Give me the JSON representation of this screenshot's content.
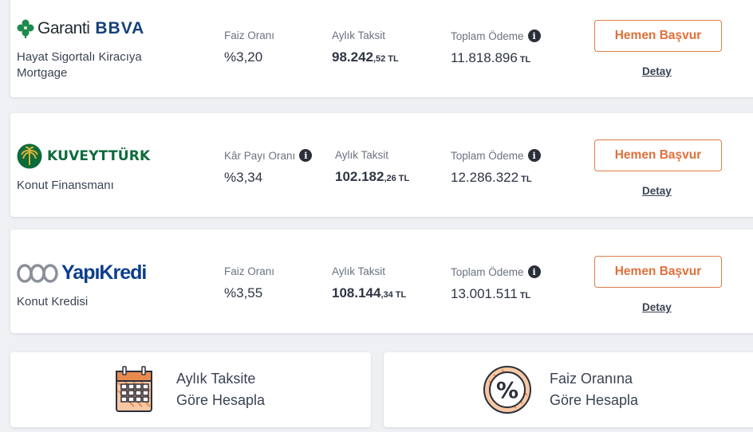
{
  "offers": [
    {
      "bank": "Garanti BBVA",
      "bank_logo_text": {
        "part1": "Garanti",
        "part2": "BBVA"
      },
      "product": "Hayat Sigortalı Kiracıya Mortgage",
      "rate_label": "Faiz Oranı",
      "rate_value": "%3,20",
      "installment_label": "Aylık Taksit",
      "installment_int": "98.242",
      "installment_dec": ",52",
      "installment_unit": "TL",
      "total_label": "Toplam Ödeme",
      "total_value": "11.818.896",
      "total_unit": "TL",
      "apply_label": "Hemen Başvur",
      "detail_label": "Detay"
    },
    {
      "bank": "Kuveyt Türk",
      "bank_logo_text": {
        "part1": "KUVEYTTÜRK"
      },
      "product": "Konut Finansmanı",
      "rate_label": "Kâr Payı Oranı",
      "rate_value": "%3,34",
      "installment_label": "Aylık Taksit",
      "installment_int": "102.182",
      "installment_dec": ",26",
      "installment_unit": "TL",
      "total_label": "Toplam Ödeme",
      "total_value": "12.286.322",
      "total_unit": "TL",
      "apply_label": "Hemen Başvur",
      "detail_label": "Detay"
    },
    {
      "bank": "Yapı Kredi",
      "bank_logo_text": {
        "part1": "YapıKredi"
      },
      "product": "Konut Kredisi",
      "rate_label": "Faiz Oranı",
      "rate_value": "%3,55",
      "installment_label": "Aylık Taksit",
      "installment_int": "108.144",
      "installment_dec": ",34",
      "installment_unit": "TL",
      "total_label": "Toplam Ödeme",
      "total_value": "13.001.511",
      "total_unit": "TL",
      "apply_label": "Hemen Başvur",
      "detail_label": "Detay"
    }
  ],
  "calculators": [
    {
      "line1": "Aylık Taksite",
      "line2": "Göre Hesapla",
      "icon": "calendar-icon"
    },
    {
      "line1": "Faiz Oranına",
      "line2": "Göre Hesapla",
      "icon": "percent-icon"
    }
  ],
  "info_icon_glyph": "i",
  "percent_glyph": "%",
  "colors": {
    "accent": "#e0703a",
    "garanti_green": "#1e8a4c",
    "bbva_blue": "#14407a",
    "kuveyt_green": "#0c6b3a",
    "yapikredi_blue": "#0d3e8c"
  }
}
